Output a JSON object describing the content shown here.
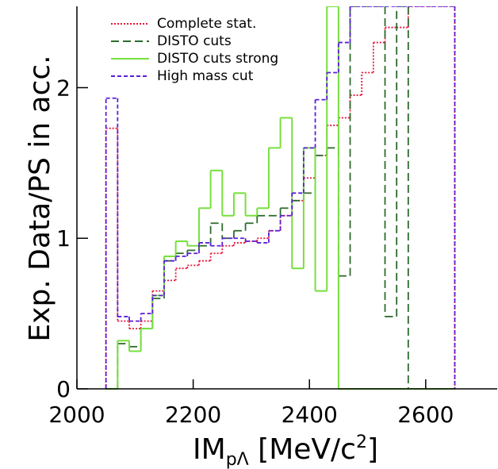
{
  "chart_data": {
    "type": "histogram",
    "ylabel": "Exp. Data/PS in acc.",
    "xlabel_parts": [
      "IM",
      "pΛ",
      " [MeV/c",
      "2",
      "]"
    ],
    "bins": [
      2050,
      2070,
      2090,
      2110,
      2130,
      2150,
      2170,
      2190,
      2210,
      2230,
      2250,
      2270,
      2290,
      2310,
      2330,
      2350,
      2370,
      2390,
      2410,
      2430,
      2450,
      2470,
      2490,
      2510,
      2530,
      2550,
      2570,
      2590,
      2610,
      2630,
      2650
    ],
    "series": [
      {
        "name": "Complete stat.",
        "color": "#e8153a",
        "dash": "2,2",
        "values": [
          1.73,
          0.45,
          0.4,
          0.45,
          0.65,
          0.72,
          0.8,
          0.82,
          0.85,
          0.9,
          0.95,
          0.97,
          0.98,
          1.0,
          1.05,
          1.15,
          1.25,
          1.4,
          1.55,
          1.75,
          1.8,
          1.95,
          2.1,
          2.3,
          2.4,
          2.4,
          2.54,
          2.54,
          2.54,
          2.54
        ]
      },
      {
        "name": "DISTO cuts",
        "color": "#2e6b2e",
        "dash": "10,5",
        "values": [
          0,
          0.3,
          0.28,
          0.4,
          0.6,
          0.85,
          0.9,
          0.92,
          0.95,
          1.1,
          1.0,
          1.05,
          1.1,
          1.15,
          1.15,
          1.2,
          1.25,
          1.3,
          1.55,
          1.6,
          0.75,
          2.54,
          2.54,
          2.54,
          0.48,
          2.54,
          0,
          0,
          0,
          0
        ]
      },
      {
        "name": "DISTO cuts strong",
        "color": "#77e03c",
        "dash": "",
        "values": [
          0,
          0.32,
          0.25,
          0.4,
          0.62,
          0.88,
          0.98,
          0.95,
          1.2,
          1.45,
          1.15,
          1.3,
          1.15,
          1.2,
          1.6,
          1.8,
          0.8,
          1.6,
          0.65,
          2.54,
          0,
          0,
          0,
          0,
          0,
          0,
          0,
          0,
          0,
          0
        ]
      },
      {
        "name": "High mass cut",
        "color": "#5a1fd8",
        "dash": "5,3",
        "values": [
          1.93,
          0.48,
          0.45,
          0.5,
          0.62,
          0.85,
          0.88,
          0.9,
          0.97,
          0.95,
          1.0,
          1.0,
          0.98,
          0.97,
          1.05,
          1.15,
          1.3,
          1.6,
          1.92,
          2.1,
          2.3,
          2.54,
          2.54,
          2.54,
          2.54,
          2.54,
          2.54,
          2.54,
          2.54,
          2.54
        ]
      }
    ],
    "xlim": [
      2000,
      2723
    ],
    "ylim": [
      0,
      2.54
    ],
    "xticks": [
      2000,
      2200,
      2400,
      2600
    ],
    "yticks": [
      0,
      1,
      2
    ],
    "legend": "upper-left"
  }
}
